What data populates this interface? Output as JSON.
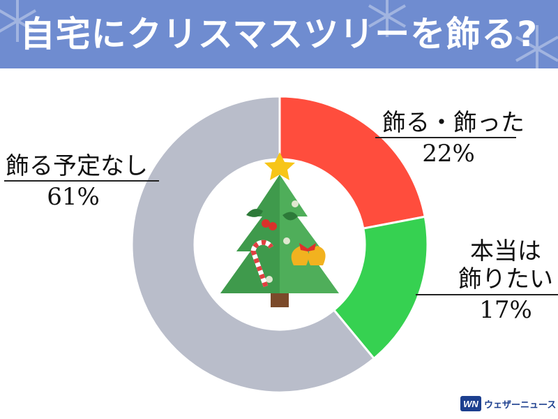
{
  "header": {
    "title": "自宅にクリスマスツリーを飾る?",
    "bg_color": "#6f8cd0"
  },
  "chart_data": {
    "type": "pie",
    "style": "donut",
    "categories": [
      "飾る・飾った",
      "本当は飾りたい",
      "飾る予定なし"
    ],
    "values": [
      22,
      17,
      61
    ],
    "value_labels": [
      "22%",
      "17%",
      "61%"
    ],
    "colors": [
      "#ff4d3d",
      "#36d151",
      "#b9bdca"
    ],
    "center_image": "christmas-tree-icon"
  },
  "labels": {
    "decorate": {
      "text": "飾る・飾った",
      "value": "22%"
    },
    "want": {
      "line1": "本当は",
      "line2": "飾りたい",
      "value": "17%"
    },
    "none": {
      "text": "飾る予定なし",
      "value": "61%"
    }
  },
  "logo": {
    "mark": "WN",
    "text": "ウェザーニュース"
  }
}
